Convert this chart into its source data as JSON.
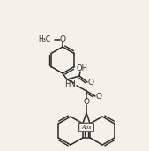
{
  "background_color": "#f5f0e8",
  "line_color": "#2a2a2a",
  "line_width": 1.1,
  "abs_label": "Abs",
  "nh_label": "HN",
  "o_label": "O",
  "oh_label": "OH",
  "meo_label": "O"
}
